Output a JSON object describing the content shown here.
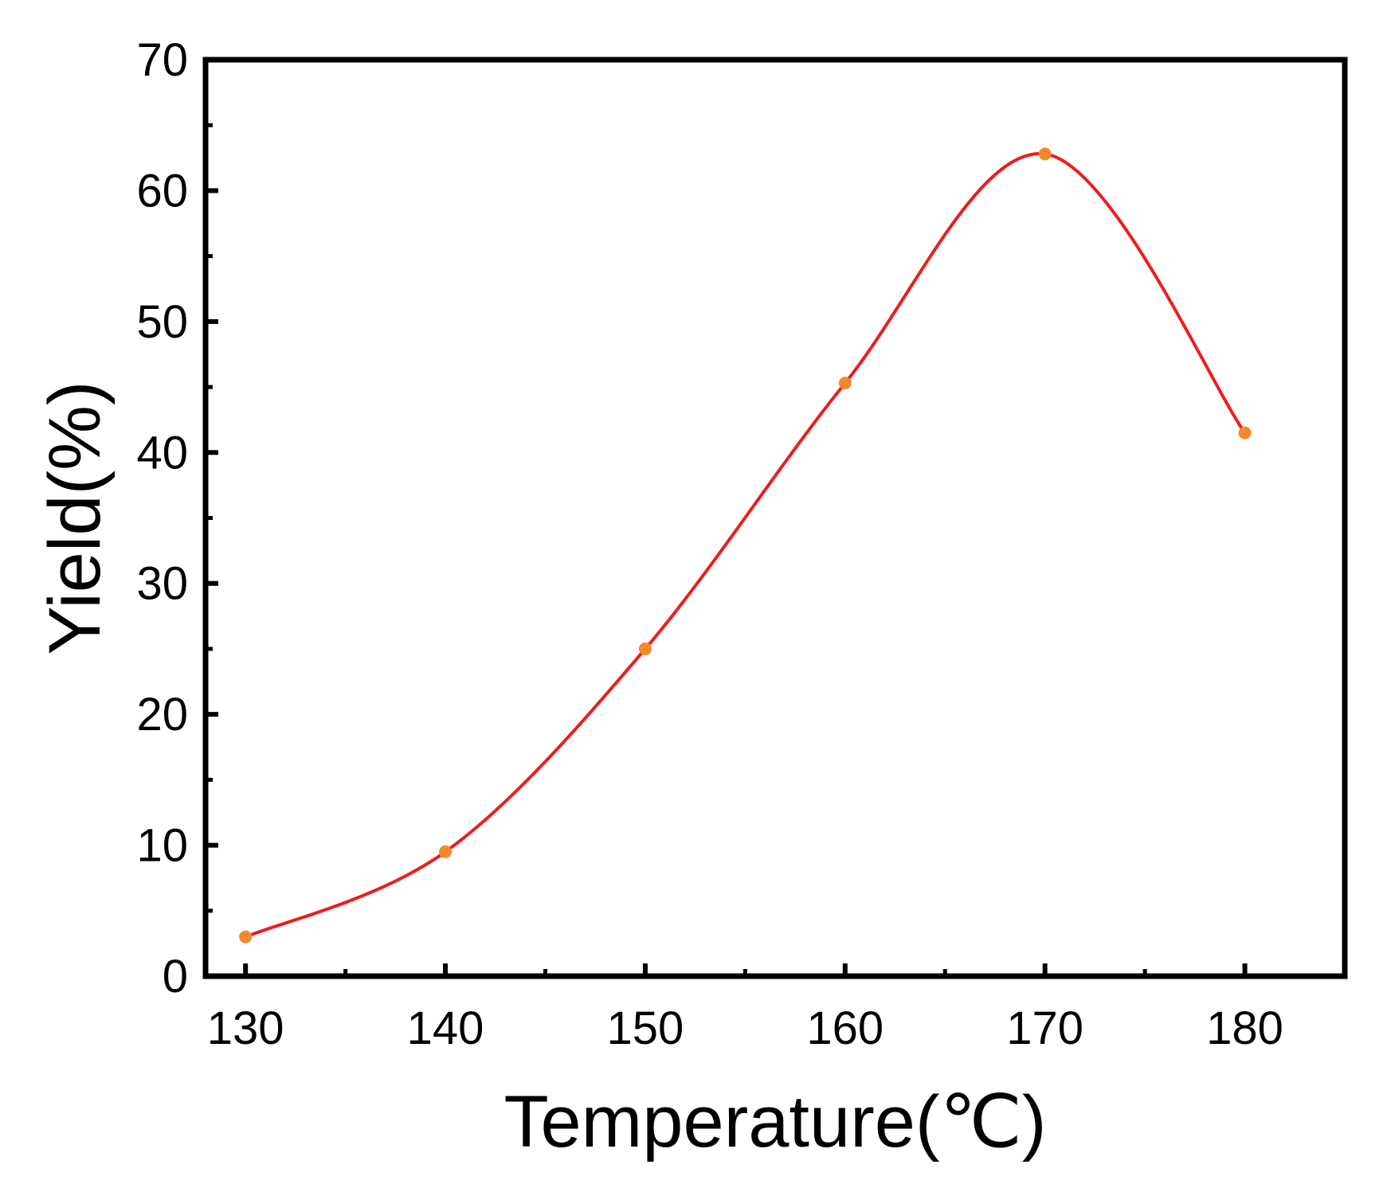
{
  "chart_data": {
    "type": "line",
    "title": "",
    "xlabel": "Temperature(℃)",
    "ylabel": "Yield(%)",
    "xlim": [
      128,
      185
    ],
    "ylim": [
      0,
      70
    ],
    "xticks": [
      130,
      140,
      150,
      160,
      170,
      180
    ],
    "yticks": [
      0,
      10,
      20,
      30,
      40,
      50,
      60,
      70
    ],
    "grid": false,
    "legend": "none",
    "series": [
      {
        "line_color": "#ee1c1c",
        "marker_color": "#f5892b",
        "smooth": true,
        "x": [
          130,
          140,
          150,
          160,
          170,
          180
        ],
        "y": [
          3.0,
          9.5,
          25.0,
          45.3,
          62.8,
          41.5
        ]
      }
    ]
  }
}
